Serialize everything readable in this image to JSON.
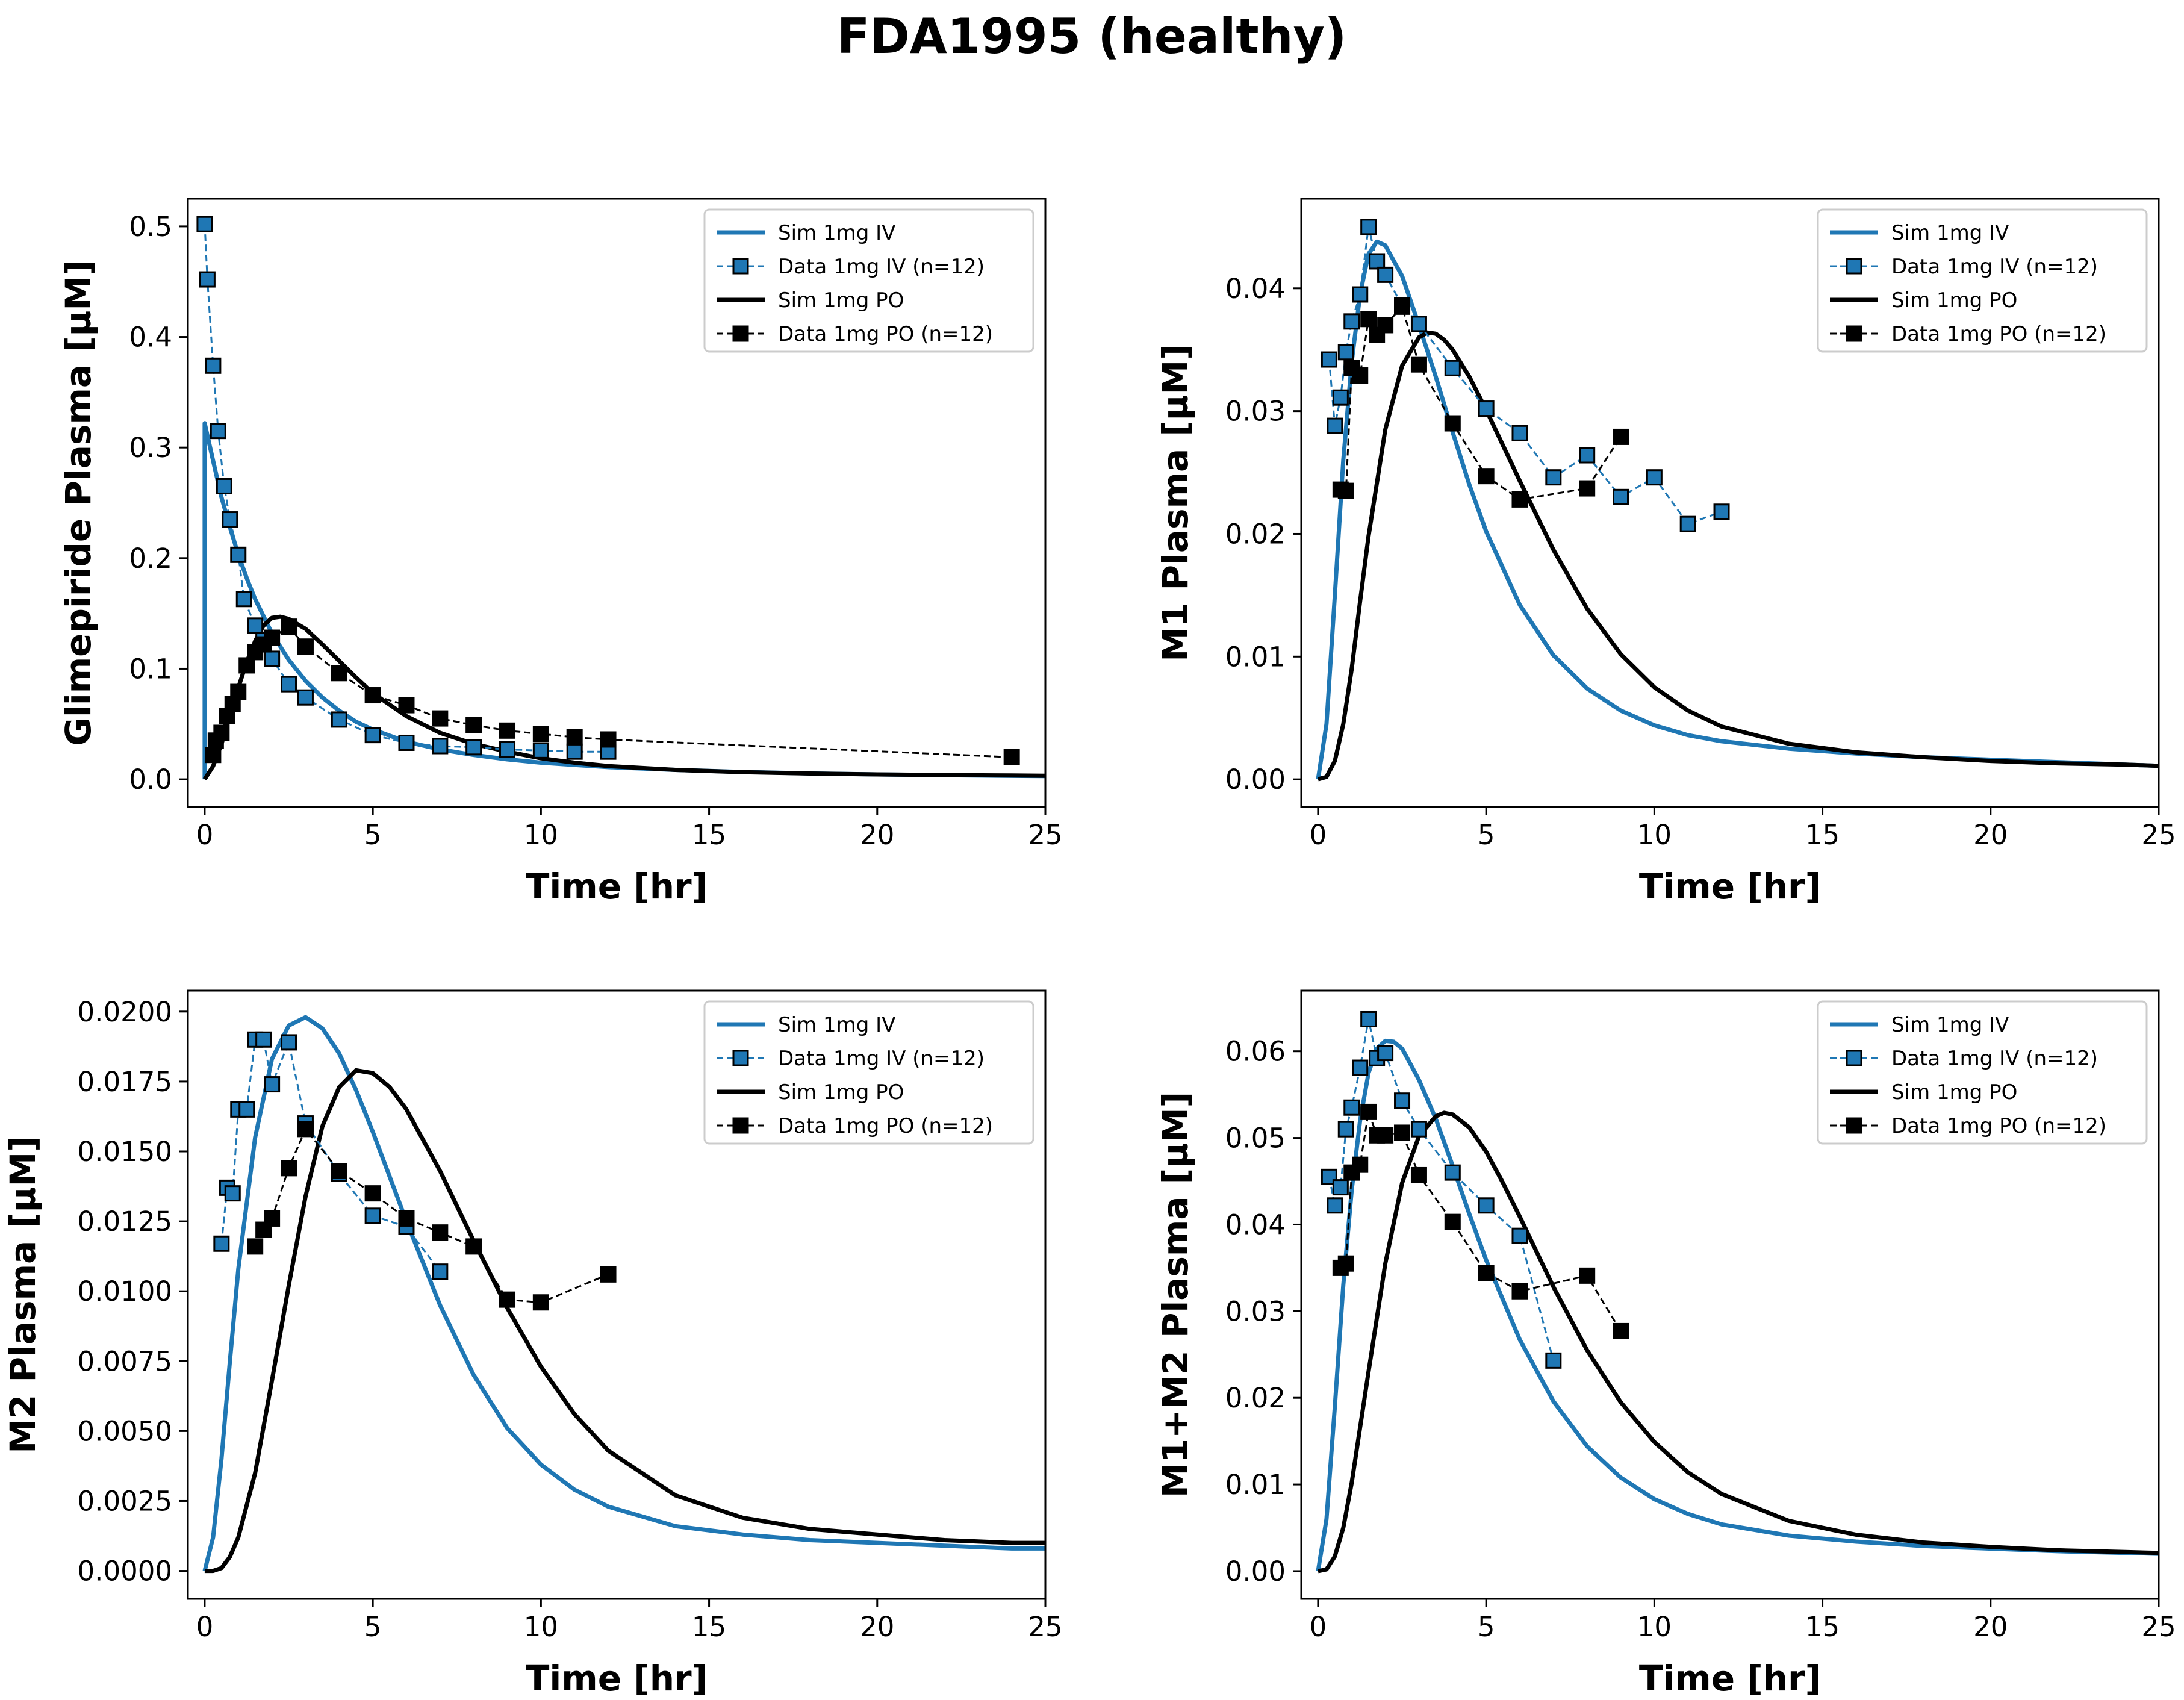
{
  "figure": {
    "title": "FDA1995 (healthy)",
    "colors": {
      "iv": "#1f77b4",
      "po": "#000000"
    }
  },
  "legend_labels": [
    "Sim 1mg IV",
    "Data 1mg IV (n=12)",
    "Sim 1mg PO",
    "Data 1mg PO (n=12)"
  ],
  "chart_data": [
    {
      "type": "line",
      "xlabel": "Time [hr]",
      "ylabel": "Glimepiride Plasma [µM]",
      "xlim": [
        -0.5,
        25
      ],
      "ylim": [
        -0.025,
        0.525
      ],
      "xticks": [
        0,
        5,
        10,
        15,
        20,
        25
      ],
      "yticks": [
        0.0,
        0.1,
        0.2,
        0.3,
        0.4,
        0.5
      ],
      "ytick_labels": [
        "0.0",
        "0.1",
        "0.2",
        "0.3",
        "0.4",
        "0.5"
      ],
      "legend_position": "upper right",
      "series": [
        {
          "name": "Sim 1mg IV",
          "style": "sim",
          "color": "#1f77b4",
          "x": [
            0,
            0,
            0.25,
            0.5,
            0.75,
            1,
            1.25,
            1.5,
            2,
            2.5,
            3,
            3.5,
            4,
            4.5,
            5,
            6,
            7,
            8,
            9,
            10,
            11,
            12,
            14,
            16,
            18,
            20,
            22,
            24,
            25
          ],
          "y": [
            0,
            0.322,
            0.288,
            0.255,
            0.228,
            0.203,
            0.182,
            0.163,
            0.132,
            0.108,
            0.089,
            0.074,
            0.062,
            0.052,
            0.045,
            0.034,
            0.027,
            0.022,
            0.018,
            0.015,
            0.013,
            0.011,
            0.0085,
            0.0066,
            0.0053,
            0.0044,
            0.0037,
            0.0031,
            0.0029
          ]
        },
        {
          "name": "Data 1mg IV (n=12)",
          "style": "data",
          "color": "#1f77b4",
          "x": [
            0,
            0.08,
            0.25,
            0.4,
            0.58,
            0.75,
            1,
            1.17,
            1.5,
            1.75,
            2,
            2.5,
            3,
            4,
            5,
            6,
            7,
            8,
            9,
            10,
            11,
            12
          ],
          "y": [
            0.502,
            0.452,
            0.374,
            0.315,
            0.265,
            0.235,
            0.203,
            0.163,
            0.139,
            0.126,
            0.109,
            0.086,
            0.074,
            0.054,
            0.04,
            0.033,
            0.03,
            0.029,
            0.027,
            0.026,
            0.025,
            0.025
          ]
        },
        {
          "name": "Sim 1mg PO",
          "style": "sim",
          "color": "#000000",
          "x": [
            0,
            0.25,
            0.5,
            0.75,
            1,
            1.25,
            1.5,
            1.75,
            2,
            2.25,
            2.5,
            3,
            3.5,
            4,
            4.5,
            5,
            6,
            7,
            8,
            9,
            10,
            11,
            12,
            14,
            16,
            18,
            20,
            22,
            24,
            25
          ],
          "y": [
            0,
            0.012,
            0.032,
            0.057,
            0.083,
            0.106,
            0.125,
            0.139,
            0.146,
            0.147,
            0.145,
            0.136,
            0.122,
            0.107,
            0.092,
            0.078,
            0.057,
            0.042,
            0.032,
            0.025,
            0.019,
            0.015,
            0.012,
            0.0085,
            0.0065,
            0.0052,
            0.0044,
            0.0038,
            0.0034,
            0.0032
          ]
        },
        {
          "name": "Data 1mg PO (n=12)",
          "style": "data",
          "color": "#000000",
          "x": [
            0.25,
            0.33,
            0.5,
            0.67,
            0.83,
            1,
            1.25,
            1.5,
            1.75,
            2,
            2.5,
            3,
            4,
            5,
            6,
            7,
            8,
            9,
            10,
            11,
            12,
            24
          ],
          "y": [
            0.022,
            0.035,
            0.042,
            0.057,
            0.068,
            0.079,
            0.103,
            0.115,
            0.122,
            0.128,
            0.138,
            0.12,
            0.096,
            0.076,
            0.067,
            0.055,
            0.049,
            0.044,
            0.041,
            0.038,
            0.036,
            0.02
          ]
        }
      ]
    },
    {
      "type": "line",
      "xlabel": "Time [hr]",
      "ylabel": "M1 Plasma [µM]",
      "xlim": [
        -0.5,
        25
      ],
      "ylim": [
        -0.00225,
        0.0473
      ],
      "xticks": [
        0,
        5,
        10,
        15,
        20,
        25
      ],
      "yticks": [
        0.0,
        0.01,
        0.02,
        0.03,
        0.04
      ],
      "ytick_labels": [
        "0.00",
        "0.01",
        "0.02",
        "0.03",
        "0.04"
      ],
      "legend_position": "upper right",
      "series": [
        {
          "name": "Sim 1mg IV",
          "style": "sim",
          "color": "#1f77b4",
          "x": [
            0,
            0.25,
            0.5,
            0.75,
            1,
            1.25,
            1.5,
            1.75,
            2,
            2.5,
            3,
            3.5,
            4,
            4.5,
            5,
            6,
            7,
            8,
            9,
            10,
            11,
            12,
            14,
            16,
            18,
            20,
            22,
            24,
            25
          ],
          "y": [
            0,
            0.0045,
            0.015,
            0.026,
            0.034,
            0.0395,
            0.0428,
            0.0438,
            0.0435,
            0.041,
            0.037,
            0.0328,
            0.0283,
            0.024,
            0.0202,
            0.0142,
            0.0101,
            0.0074,
            0.0056,
            0.0044,
            0.0036,
            0.0031,
            0.0025,
            0.0021,
            0.0018,
            0.0016,
            0.0014,
            0.0012,
            0.0011
          ]
        },
        {
          "name": "Data 1mg IV (n=12)",
          "style": "data",
          "color": "#1f77b4",
          "x": [
            0.33,
            0.5,
            0.67,
            0.83,
            1,
            1.25,
            1.5,
            1.75,
            2,
            2.5,
            3,
            4,
            5,
            6,
            7,
            8,
            9,
            10,
            11,
            12
          ],
          "y": [
            0.0342,
            0.0288,
            0.0311,
            0.0348,
            0.0373,
            0.0395,
            0.045,
            0.0422,
            0.0411,
            0.0386,
            0.0371,
            0.0335,
            0.0302,
            0.0282,
            0.0246,
            0.0264,
            0.023,
            0.0246,
            0.0208,
            0.0218
          ]
        },
        {
          "name": "Sim 1mg PO",
          "style": "sim",
          "color": "#000000",
          "x": [
            0,
            0.25,
            0.5,
            0.75,
            1,
            1.25,
            1.5,
            2,
            2.5,
            3,
            3.25,
            3.5,
            3.75,
            4,
            4.5,
            5,
            6,
            7,
            8,
            9,
            10,
            11,
            12,
            14,
            16,
            18,
            20,
            22,
            24,
            25
          ],
          "y": [
            0,
            0.0002,
            0.0015,
            0.0045,
            0.009,
            0.0145,
            0.0198,
            0.0285,
            0.0337,
            0.036,
            0.0364,
            0.0363,
            0.0358,
            0.035,
            0.0328,
            0.0301,
            0.0243,
            0.0187,
            0.0139,
            0.0102,
            0.0075,
            0.0056,
            0.0043,
            0.0029,
            0.0022,
            0.0018,
            0.0015,
            0.0013,
            0.0012,
            0.0011
          ]
        },
        {
          "name": "Data 1mg PO (n=12)",
          "style": "data",
          "color": "#000000",
          "x": [
            0.67,
            0.83,
            1,
            1.25,
            1.5,
            1.75,
            2,
            2.5,
            3,
            4,
            5,
            6,
            8,
            9
          ],
          "y": [
            0.0236,
            0.0235,
            0.0335,
            0.0329,
            0.0375,
            0.0362,
            0.037,
            0.0385,
            0.0338,
            0.029,
            0.0247,
            0.0228,
            0.0237,
            0.0279
          ]
        }
      ]
    },
    {
      "type": "line",
      "xlabel": "Time [hr]",
      "ylabel": "M2 Plasma [µM]",
      "xlim": [
        -0.5,
        25
      ],
      "ylim": [
        -0.001,
        0.02075
      ],
      "xticks": [
        0,
        5,
        10,
        15,
        20,
        25
      ],
      "yticks": [
        0.0,
        0.0025,
        0.005,
        0.0075,
        0.01,
        0.0125,
        0.015,
        0.0175,
        0.02
      ],
      "ytick_labels": [
        "0.0000",
        "0.0025",
        "0.0050",
        "0.0075",
        "0.0100",
        "0.0125",
        "0.0150",
        "0.0175",
        "0.0200"
      ],
      "legend_position": "upper right",
      "series": [
        {
          "name": "Sim 1mg IV",
          "style": "sim",
          "color": "#1f77b4",
          "x": [
            0,
            0.25,
            0.5,
            0.75,
            1,
            1.5,
            2,
            2.5,
            3,
            3.5,
            4,
            4.5,
            5,
            6,
            7,
            8,
            9,
            10,
            11,
            12,
            14,
            16,
            18,
            20,
            22,
            24,
            25
          ],
          "y": [
            0,
            0.0012,
            0.004,
            0.0075,
            0.0108,
            0.0155,
            0.0183,
            0.0195,
            0.0198,
            0.0194,
            0.0185,
            0.0172,
            0.0157,
            0.0125,
            0.0095,
            0.007,
            0.0051,
            0.0038,
            0.0029,
            0.0023,
            0.0016,
            0.0013,
            0.0011,
            0.001,
            0.0009,
            0.0008,
            0.0008
          ]
        },
        {
          "name": "Data 1mg IV (n=12)",
          "style": "data",
          "color": "#1f77b4",
          "x": [
            0.5,
            0.67,
            0.83,
            1,
            1.25,
            1.5,
            1.75,
            2,
            2.5,
            3,
            4,
            5,
            6,
            7
          ],
          "y": [
            0.0117,
            0.0137,
            0.0135,
            0.0165,
            0.0165,
            0.019,
            0.019,
            0.0174,
            0.0189,
            0.016,
            0.0142,
            0.0127,
            0.0123,
            0.0107
          ]
        },
        {
          "name": "Sim 1mg PO",
          "style": "sim",
          "color": "#000000",
          "x": [
            0,
            0.25,
            0.5,
            0.75,
            1,
            1.5,
            2,
            2.5,
            3,
            3.5,
            4,
            4.5,
            5,
            5.5,
            6,
            7,
            8,
            9,
            10,
            11,
            12,
            14,
            16,
            18,
            20,
            22,
            24,
            25
          ],
          "y": [
            0,
            0,
            0.0001,
            0.0005,
            0.0012,
            0.0035,
            0.0068,
            0.0102,
            0.0134,
            0.0159,
            0.0173,
            0.0179,
            0.0178,
            0.0173,
            0.0165,
            0.0143,
            0.0118,
            0.0094,
            0.0073,
            0.0056,
            0.0043,
            0.0027,
            0.0019,
            0.0015,
            0.0013,
            0.0011,
            0.001,
            0.001
          ]
        },
        {
          "name": "Data 1mg PO (n=12)",
          "style": "data",
          "color": "#000000",
          "x": [
            1.5,
            1.75,
            2,
            2.5,
            3,
            4,
            5,
            6,
            7,
            8,
            9,
            10,
            12
          ],
          "y": [
            0.0116,
            0.0122,
            0.0126,
            0.0144,
            0.0158,
            0.0143,
            0.0135,
            0.0126,
            0.0121,
            0.0116,
            0.0097,
            0.0096,
            0.0106
          ]
        }
      ]
    },
    {
      "type": "line",
      "xlabel": "Time [hr]",
      "ylabel": "M1+M2 Plasma [µM]",
      "xlim": [
        -0.5,
        25
      ],
      "ylim": [
        -0.0032,
        0.067
      ],
      "xticks": [
        0,
        5,
        10,
        15,
        20,
        25
      ],
      "yticks": [
        0.0,
        0.01,
        0.02,
        0.03,
        0.04,
        0.05,
        0.06
      ],
      "ytick_labels": [
        "0.00",
        "0.01",
        "0.02",
        "0.03",
        "0.04",
        "0.05",
        "0.06"
      ],
      "legend_position": "upper right",
      "series": [
        {
          "name": "Sim 1mg IV",
          "style": "sim",
          "color": "#1f77b4",
          "x": [
            0,
            0.25,
            0.5,
            0.75,
            1,
            1.25,
            1.5,
            1.75,
            2,
            2.25,
            2.5,
            3,
            3.5,
            4,
            4.5,
            5,
            6,
            7,
            8,
            9,
            10,
            11,
            12,
            14,
            16,
            18,
            20,
            22,
            24,
            25
          ],
          "y": [
            0,
            0.006,
            0.019,
            0.033,
            0.044,
            0.052,
            0.0575,
            0.0603,
            0.0612,
            0.0611,
            0.0603,
            0.0567,
            0.0522,
            0.0468,
            0.0412,
            0.0359,
            0.0267,
            0.0196,
            0.0144,
            0.0108,
            0.0083,
            0.0066,
            0.0054,
            0.0041,
            0.0034,
            0.0029,
            0.0026,
            0.0023,
            0.0021,
            0.002
          ]
        },
        {
          "name": "Data 1mg IV (n=12)",
          "style": "data",
          "color": "#1f77b4",
          "x": [
            0.33,
            0.5,
            0.67,
            0.83,
            1,
            1.25,
            1.5,
            1.75,
            2,
            2.5,
            3,
            4,
            5,
            6,
            7
          ],
          "y": [
            0.0455,
            0.0422,
            0.0443,
            0.051,
            0.0535,
            0.0581,
            0.0637,
            0.0592,
            0.0598,
            0.0543,
            0.051,
            0.046,
            0.0422,
            0.0387,
            0.0243
          ]
        },
        {
          "name": "Sim 1mg PO",
          "style": "sim",
          "color": "#000000",
          "x": [
            0,
            0.25,
            0.5,
            0.75,
            1,
            1.5,
            2,
            2.5,
            3,
            3.5,
            3.75,
            4,
            4.5,
            5,
            5.5,
            6,
            7,
            8,
            9,
            10,
            11,
            12,
            14,
            16,
            18,
            20,
            22,
            24,
            25
          ],
          "y": [
            0,
            0.0002,
            0.0017,
            0.005,
            0.0102,
            0.023,
            0.0355,
            0.0448,
            0.0502,
            0.0525,
            0.0529,
            0.0527,
            0.0512,
            0.0484,
            0.0448,
            0.0409,
            0.0328,
            0.0255,
            0.0195,
            0.0149,
            0.0114,
            0.0089,
            0.0058,
            0.0042,
            0.0033,
            0.0028,
            0.0024,
            0.0022,
            0.0021
          ]
        },
        {
          "name": "Data 1mg PO (n=12)",
          "style": "data",
          "color": "#000000",
          "x": [
            0.67,
            0.83,
            1,
            1.25,
            1.5,
            1.75,
            2,
            2.5,
            3,
            4,
            5,
            6,
            8,
            9
          ],
          "y": [
            0.035,
            0.0355,
            0.046,
            0.0469,
            0.053,
            0.0503,
            0.0503,
            0.0506,
            0.0457,
            0.0403,
            0.0344,
            0.0323,
            0.0341,
            0.0277
          ]
        }
      ]
    }
  ]
}
